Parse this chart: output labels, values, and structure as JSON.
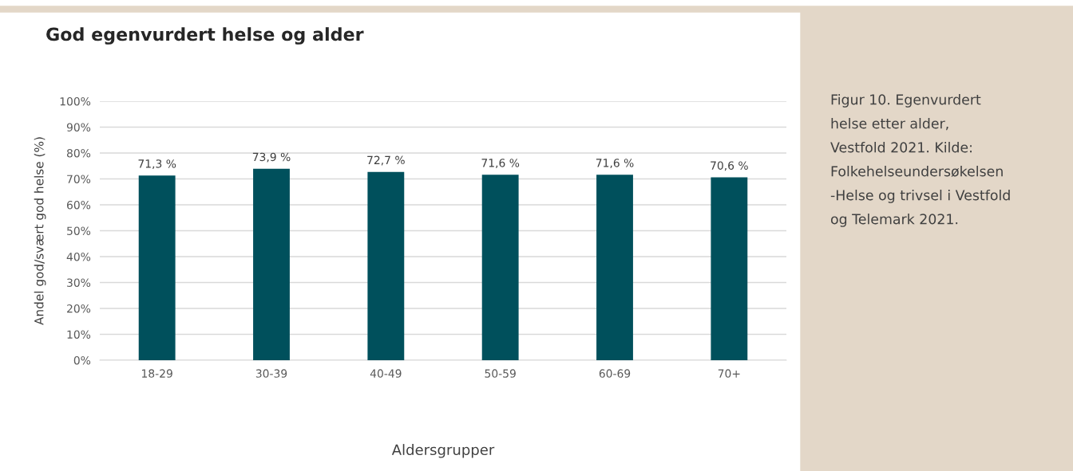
{
  "chart_data": {
    "type": "bar",
    "title": "God egenvurdert helse og alder",
    "xlabel": "Aldersgrupper",
    "ylabel": "Andel god/svært god helse (%)",
    "categories": [
      "18-29",
      "30-39",
      "40-49",
      "50-59",
      "60-69",
      "70+"
    ],
    "values": [
      71.3,
      73.9,
      72.7,
      71.6,
      71.6,
      70.6
    ],
    "value_labels": [
      "71,3 %",
      "73,9 %",
      "72,7 %",
      "71,6 %",
      "71,6 %",
      "70,6 %"
    ],
    "color": "#00505c",
    "ylim": [
      0,
      100
    ],
    "yticks": [
      {
        "value": 0,
        "label": "0%"
      },
      {
        "value": 10,
        "label": "10%"
      },
      {
        "value": 20,
        "label": "20%"
      },
      {
        "value": 30,
        "label": "30%"
      },
      {
        "value": 40,
        "label": "40%"
      },
      {
        "value": 50,
        "label": "50%"
      },
      {
        "value": 60,
        "label": "60%"
      },
      {
        "value": 70,
        "label": "70%"
      },
      {
        "value": 80,
        "label": "80%"
      },
      {
        "value": 90,
        "label": "90%"
      },
      {
        "value": 100,
        "label": "100%"
      }
    ],
    "grid": "y",
    "annotations": [
      "Figur 10. Egenvurdert\nhelse etter alder,\nVestfold 2021. Kilde:\nFolkehelseundersøkelsen\n-Helse og trivsel i Vestfold\nog Telemark 2021."
    ]
  }
}
